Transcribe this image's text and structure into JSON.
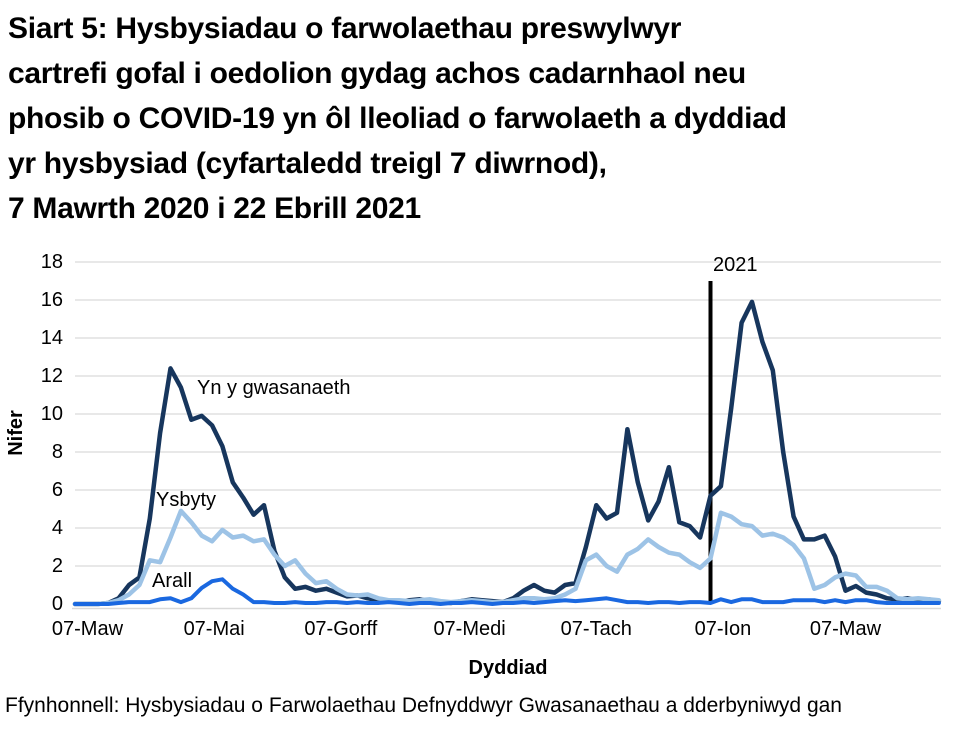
{
  "title": "Siart 5: Hysbysiadau o farwolaethau preswylwyr\ncartrefi gofal i oedolion gydag achos cadarnhaol neu\nphosib o COVID-19 yn ôl lleoliad o farwolaeth a dyddiad\nyr hysbysiad (cyfartaledd treigl 7 diwrnod),\n7 Mawrth 2020 i 22 Ebrill 2021",
  "source_note": "Ffynhonnell: Hysbysiadau o Farwolaethau Defnyddwyr Gwasanaethau a dderbyniwyd gan",
  "chart_data": {
    "type": "line",
    "title": "Siart 5: Hysbysiadau o farwolaethau preswylwyr cartrefi gofal i oedolion gydag achos cadarnhaol neu phosib o COVID-19 yn ôl lleoliad o farwolaeth a dyddiad yr hysbysiad (cyfartaledd treigl 7 diwrnod), 7 Mawrth 2020 i 22 Ebrill 2021",
    "xlabel": "Dyddiad",
    "ylabel": "Nifer",
    "ylim": [
      0,
      18
    ],
    "y_ticks": [
      0,
      2,
      4,
      6,
      8,
      10,
      12,
      14,
      16,
      18
    ],
    "x_tick_labels": [
      "07-Maw",
      "07-Mai",
      "07-Gorff",
      "07-Medi",
      "07-Tach",
      "07-Ion",
      "07-Maw"
    ],
    "x_tick_days": [
      0,
      61,
      122,
      184,
      245,
      306,
      365
    ],
    "x_day0_date": "7 Mawrth 2020",
    "x_end_date": "22 Ebrill 2021",
    "grid_on": true,
    "grid_color": "#D9D9D9",
    "annotation": {
      "label": "2021",
      "day": 300,
      "top_value": 17,
      "color": "#000000"
    },
    "x_days": [
      0,
      5,
      10,
      15,
      20,
      25,
      30,
      35,
      40,
      45,
      50,
      55,
      60,
      65,
      70,
      75,
      80,
      85,
      90,
      95,
      100,
      105,
      110,
      115,
      120,
      125,
      130,
      135,
      140,
      145,
      150,
      155,
      160,
      165,
      170,
      175,
      180,
      185,
      190,
      195,
      200,
      205,
      210,
      215,
      220,
      225,
      230,
      235,
      240,
      245,
      250,
      255,
      260,
      265,
      270,
      275,
      280,
      285,
      290,
      295,
      300,
      305,
      310,
      315,
      320,
      325,
      330,
      335,
      340,
      345,
      350,
      355,
      360,
      365,
      370,
      375,
      380,
      385,
      390,
      395,
      400,
      405,
      410
    ],
    "series": [
      {
        "name": "Yn y gwasanaeth",
        "color": "#17365D",
        "values": [
          0,
          0,
          0.05,
          0.3,
          1,
          1.4,
          4.5,
          9,
          12.4,
          11.4,
          9.7,
          9.9,
          9.4,
          8.3,
          6.4,
          5.6,
          4.7,
          5.2,
          2.8,
          1.4,
          0.8,
          0.9,
          0.7,
          0.8,
          0.6,
          0.4,
          0.45,
          0.3,
          0.2,
          0.15,
          0.1,
          0.2,
          0.25,
          0.15,
          0.1,
          0.05,
          0.15,
          0.25,
          0.2,
          0.15,
          0.1,
          0.3,
          0.7,
          1,
          0.7,
          0.6,
          1,
          1.1,
          3,
          5.2,
          4.5,
          4.8,
          9.2,
          6.4,
          4.4,
          5.4,
          7.2,
          4.3,
          4.1,
          3.5,
          5.7,
          6.2,
          10.3,
          14.8,
          15.9,
          13.8,
          12.3,
          8,
          4.6,
          3.4,
          3.4,
          3.6,
          2.5,
          0.7,
          0.95,
          0.6,
          0.5,
          0.3,
          0.25,
          0.3,
          0.2,
          0.25,
          0.15
        ]
      },
      {
        "name": "Ysbyty",
        "color": "#9DC3E6",
        "values": [
          0,
          0,
          0.05,
          0.2,
          0.5,
          1,
          2.3,
          2.2,
          3.5,
          4.9,
          4.3,
          3.6,
          3.3,
          3.9,
          3.5,
          3.6,
          3.3,
          3.4,
          2.6,
          2,
          2.3,
          1.6,
          1.1,
          1.2,
          0.8,
          0.5,
          0.45,
          0.5,
          0.3,
          0.2,
          0.2,
          0.15,
          0.2,
          0.25,
          0.15,
          0.1,
          0.15,
          0.2,
          0.15,
          0.1,
          0.1,
          0.2,
          0.3,
          0.3,
          0.25,
          0.3,
          0.5,
          0.8,
          2.3,
          2.6,
          2,
          1.7,
          2.6,
          2.9,
          3.4,
          3,
          2.7,
          2.6,
          2.2,
          1.9,
          2.4,
          4.8,
          4.6,
          4.2,
          4.1,
          3.6,
          3.7,
          3.5,
          3.1,
          2.4,
          0.8,
          1,
          1.4,
          1.6,
          1.5,
          0.9,
          0.9,
          0.7,
          0.3,
          0.25,
          0.3,
          0.25,
          0.2
        ]
      },
      {
        "name": "Arall",
        "color": "#1A68E0",
        "values": [
          0,
          0,
          0,
          0.05,
          0.1,
          0.1,
          0.1,
          0.25,
          0.3,
          0.1,
          0.3,
          0.85,
          1.2,
          1.3,
          0.8,
          0.5,
          0.1,
          0.1,
          0.05,
          0.05,
          0.1,
          0.05,
          0.05,
          0.1,
          0.1,
          0.05,
          0.1,
          0.05,
          0.05,
          0.1,
          0.05,
          0,
          0.05,
          0.05,
          0,
          0.05,
          0.05,
          0.1,
          0.05,
          0,
          0.05,
          0.05,
          0.1,
          0.05,
          0.1,
          0.15,
          0.2,
          0.15,
          0.2,
          0.25,
          0.3,
          0.2,
          0.1,
          0.1,
          0.05,
          0.1,
          0.1,
          0.05,
          0.1,
          0.1,
          0.05,
          0.25,
          0.1,
          0.25,
          0.25,
          0.1,
          0.1,
          0.1,
          0.2,
          0.2,
          0.2,
          0.1,
          0.2,
          0.1,
          0.2,
          0.2,
          0.1,
          0.05,
          0.05,
          0.05,
          0.05,
          0.05,
          0.05
        ]
      }
    ]
  }
}
